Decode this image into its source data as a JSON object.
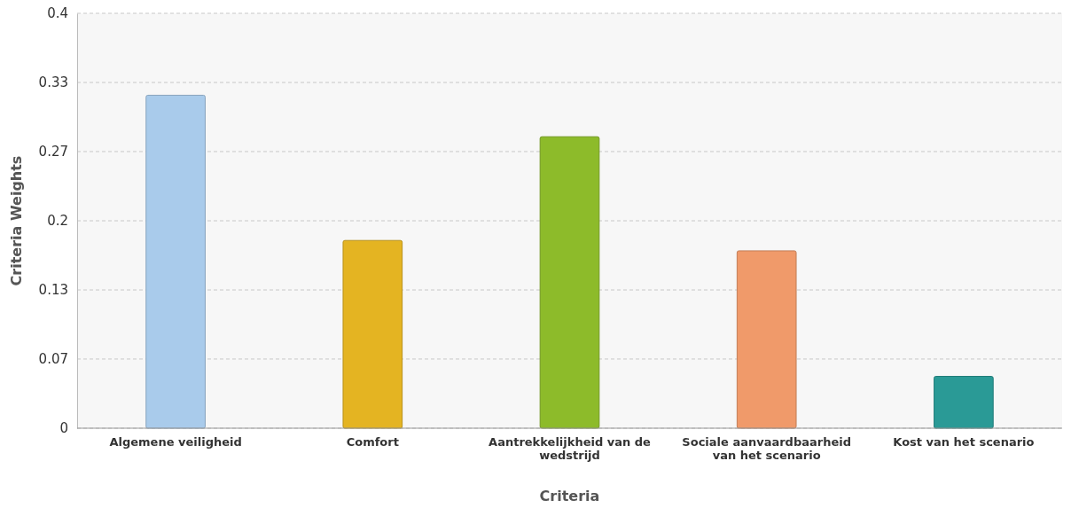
{
  "chart_data": {
    "type": "bar",
    "xlabel": "Criteria",
    "ylabel": "Criteria Weights",
    "categories": [
      "Algemene veiligheid",
      "Comfort",
      "Aantrekkelijkheid van de wedstrijd",
      "Sociale aanvaardbaarheid van het scenario",
      "Kost van het scenario"
    ],
    "values": [
      0.321,
      0.181,
      0.281,
      0.171,
      0.05
    ],
    "colors": [
      "#a9cbeb",
      "#e4b422",
      "#8dbb2a",
      "#f09a6a",
      "#2a9a96"
    ],
    "ylim": [
      0,
      0.4
    ],
    "yticks": [
      0,
      {
        "value": 0.0667,
        "label": "0.07"
      },
      {
        "value": 0.1333,
        "label": "0.13"
      },
      0.2,
      {
        "value": 0.2667,
        "label": "0.27"
      },
      {
        "value": 0.3333,
        "label": "0.33"
      },
      0.4
    ],
    "grid": "y"
  }
}
